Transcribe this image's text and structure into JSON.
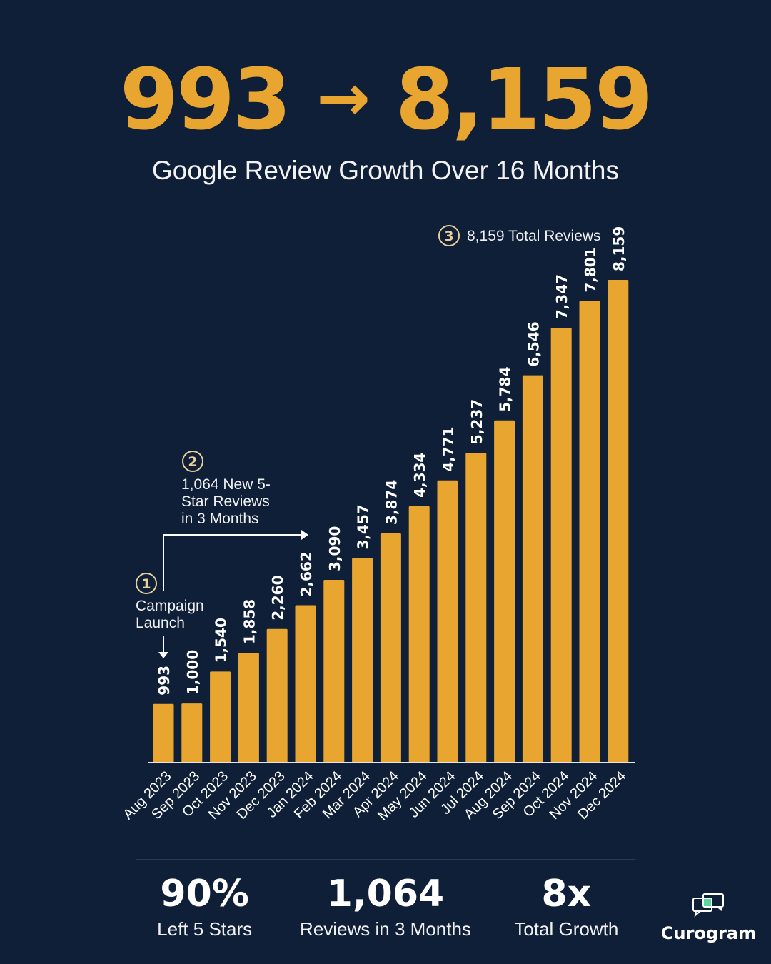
{
  "headline": {
    "from": "993",
    "arrow": "→",
    "to": "8,159"
  },
  "subtitle": "Google Review Growth Over 16 Months",
  "colors": {
    "background": "#0f1f38",
    "bar": "#e8a530",
    "annotation_circle": "#e8cf9a",
    "logo_accent": "#5ad6a0"
  },
  "chart_data": {
    "type": "bar",
    "categories": [
      "Aug 2023",
      "Sep 2023",
      "Oct 2023",
      "Nov 2023",
      "Dec 2023",
      "Jan 2024",
      "Feb 2024",
      "Mar 2024",
      "Apr 2024",
      "May 2024",
      "Jun 2024",
      "Jul 2024",
      "Aug 2024",
      "Sep 2024",
      "Oct 2024",
      "Nov 2024",
      "Dec 2024"
    ],
    "values": [
      993,
      1000,
      1540,
      1858,
      2260,
      2662,
      3090,
      3457,
      3874,
      4334,
      4771,
      5237,
      5784,
      6546,
      7347,
      7801,
      8159
    ],
    "data_labels": [
      "993",
      "1,000",
      "1,540",
      "1,858",
      "2,260",
      "2,662",
      "3,090",
      "3,457",
      "3,874",
      "4,334",
      "4,771",
      "5,237",
      "5,784",
      "6,546",
      "7,347",
      "7,801",
      "8,159"
    ],
    "ylim": [
      0,
      8159
    ],
    "grid": false,
    "annotations": [
      {
        "number": "1",
        "lines": [
          "Campaign",
          "Launch"
        ]
      },
      {
        "number": "2",
        "lines": [
          "1,064 New 5-",
          "Star Reviews",
          "in 3 Months"
        ]
      },
      {
        "number": "3",
        "lines": [
          "8,159 Total Reviews"
        ]
      }
    ]
  },
  "stats": [
    {
      "value": "90%",
      "label": "Left 5 Stars"
    },
    {
      "value": "1,064",
      "label": "Reviews in 3 Months"
    },
    {
      "value": "8x",
      "label": "Total Growth"
    }
  ],
  "logo": {
    "name": "Curogram",
    "icon": "chat-bubbles-icon"
  }
}
